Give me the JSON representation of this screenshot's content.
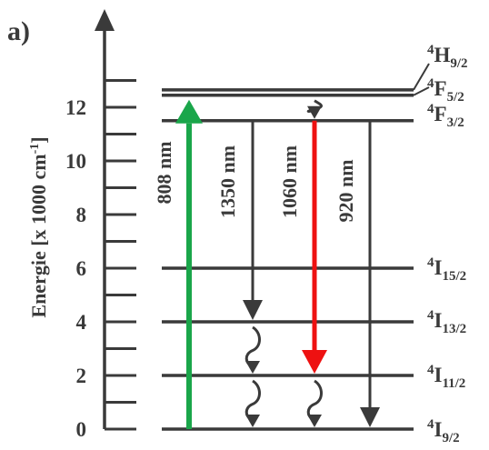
{
  "panel_label": "a)",
  "axis": {
    "title": "Energie [x 1000 cm",
    "title_sup": "-1",
    "title_end": "]",
    "ticks": [
      {
        "value": 0,
        "label": "0"
      },
      {
        "value": 2,
        "label": "2"
      },
      {
        "value": 4,
        "label": "4"
      },
      {
        "value": 6,
        "label": "6"
      },
      {
        "value": 8,
        "label": "8"
      },
      {
        "value": 10,
        "label": "10"
      },
      {
        "value": 12,
        "label": "12"
      }
    ]
  },
  "levels": [
    {
      "id": "4I9/2",
      "energy": 0.0,
      "label": {
        "sup": "4",
        "letter": "I",
        "sub": "9/2"
      }
    },
    {
      "id": "4I11/2",
      "energy": 2.0,
      "label": {
        "sup": "4",
        "letter": "I",
        "sub": "11/2"
      }
    },
    {
      "id": "4I13/2",
      "energy": 4.0,
      "label": {
        "sup": "4",
        "letter": "I",
        "sub": "13/2"
      }
    },
    {
      "id": "4I15/2",
      "energy": 6.0,
      "label": {
        "sup": "4",
        "letter": "I",
        "sub": "15/2"
      }
    },
    {
      "id": "4F3/2",
      "energy": 11.5,
      "label": {
        "sup": "4",
        "letter": "F",
        "sub": "3/2"
      }
    },
    {
      "id": "4F5/2",
      "energy": 12.45,
      "label": {
        "sup": "4",
        "letter": "F",
        "sub": "5/2"
      }
    },
    {
      "id": "4H9/2",
      "energy": 12.65,
      "label": {
        "sup": "4",
        "letter": "H",
        "sub": "9/2"
      }
    }
  ],
  "transitions": [
    {
      "label": "808 nm",
      "from": "4I9/2",
      "to": "4F5/2",
      "kind": "absorption",
      "color": "#1aa64a"
    },
    {
      "label": "1350 nm",
      "from": "4F3/2",
      "to": "4I13/2",
      "kind": "emission",
      "color": "#3a3a3a"
    },
    {
      "label": "1060 nm",
      "from": "4F3/2",
      "to": "4I11/2",
      "kind": "emission",
      "color": "#ee1111"
    },
    {
      "label": "920 nm",
      "from": "4F3/2",
      "to": "4I9/2",
      "kind": "emission",
      "color": "#3a3a3a"
    }
  ],
  "colors": {
    "ink": "#3a3a3a",
    "pump": "#1aa64a",
    "laser": "#ee1111"
  }
}
